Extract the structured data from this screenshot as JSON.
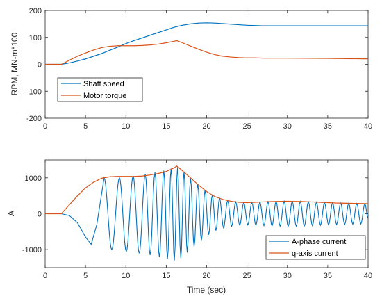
{
  "chart_data": [
    {
      "type": "line",
      "xlim": [
        0,
        40
      ],
      "ylim": [
        -200,
        200
      ],
      "xticks": [
        0,
        5,
        10,
        15,
        20,
        25,
        30,
        35,
        40
      ],
      "yticks": [
        -200,
        -100,
        0,
        100,
        200
      ],
      "xlabel": "",
      "ylabel": "RPM, MN-m*100",
      "grid": false,
      "legend_position": "lower-left",
      "series": [
        {
          "name": "Shaft speed",
          "color": "#0072BD",
          "x": [
            0,
            2,
            3,
            4,
            5,
            6,
            7,
            8,
            9,
            10,
            11,
            12,
            13,
            14,
            15,
            16,
            17,
            18,
            19,
            20,
            21,
            22,
            23,
            24,
            25,
            26,
            27,
            28,
            30,
            32,
            35,
            38,
            40
          ],
          "y": [
            0,
            0,
            5,
            12,
            20,
            30,
            40,
            52,
            64,
            77,
            88,
            98,
            108,
            118,
            128,
            138,
            145,
            150,
            153,
            154,
            153,
            151,
            149,
            147,
            145,
            144,
            143,
            143,
            143,
            143,
            143,
            143,
            143
          ]
        },
        {
          "name": "Motor torque",
          "color": "#D95319",
          "x": [
            0,
            2,
            3,
            4,
            5,
            6,
            7,
            8,
            9,
            10,
            11,
            12,
            13,
            14,
            15,
            16,
            16.3,
            17,
            18,
            19,
            20,
            21,
            22,
            23,
            24,
            25,
            26,
            27,
            30,
            35,
            40
          ],
          "y": [
            0,
            0,
            15,
            30,
            42,
            53,
            62,
            67,
            69,
            69,
            69,
            70,
            72,
            75,
            80,
            86,
            88,
            80,
            68,
            56,
            45,
            36,
            30,
            27,
            25,
            24,
            24,
            23,
            23,
            22,
            20
          ]
        }
      ]
    },
    {
      "type": "line",
      "xlim": [
        0,
        40
      ],
      "ylim": [
        -1500,
        1500
      ],
      "xticks": [
        0,
        5,
        10,
        15,
        20,
        25,
        30,
        35,
        40
      ],
      "yticks": [
        -1000,
        0,
        1000
      ],
      "xlabel": "Time (sec)",
      "ylabel": "A",
      "grid": false,
      "legend_position": "lower-right",
      "series": [
        {
          "name": "A-phase current",
          "color": "#0072BD",
          "signal": "sinusoid bounded by the q-axis current envelope",
          "peaks_t": [
            7.3,
            9.2,
            10.9,
            12.4,
            13.6,
            14.7,
            15.6,
            16.4,
            17.2,
            18.0,
            18.9,
            19.8,
            20.7,
            21.6,
            22.6,
            23.6,
            24.6,
            25.6,
            26.6,
            27.6,
            28.6,
            29.6,
            30.6,
            31.6,
            32.6,
            33.6,
            34.6,
            35.6,
            36.6,
            37.6,
            38.6,
            39.6
          ],
          "x": [
            0,
            2,
            3,
            4,
            5,
            5.7,
            6.4,
            7.3,
            8.25,
            9.2,
            10.05,
            10.9,
            11.65,
            12.4,
            13.0,
            13.6,
            14.15,
            14.7,
            15.15,
            15.6,
            16.0,
            16.4
          ],
          "y": [
            0,
            0,
            -50,
            -250,
            -650,
            -850,
            -300,
            1000,
            -1000,
            1000,
            -1050,
            1050,
            -1100,
            1100,
            -1150,
            1150,
            -1200,
            1200,
            -1250,
            1260,
            -1300,
            1300
          ]
        },
        {
          "name": "q-axis current",
          "color": "#D95319",
          "x": [
            0,
            2,
            3,
            4,
            5,
            6,
            7,
            8,
            9,
            10,
            11,
            12,
            13,
            14,
            15,
            16,
            16.3,
            17,
            18,
            19,
            20,
            21,
            22,
            23,
            24,
            25,
            26,
            27,
            28,
            29,
            30,
            31,
            32,
            33,
            34,
            35,
            36,
            37,
            38,
            39,
            40
          ],
          "y": [
            0,
            0,
            250,
            500,
            720,
            880,
            990,
            1030,
            1040,
            1040,
            1040,
            1050,
            1080,
            1120,
            1180,
            1280,
            1330,
            1200,
            1000,
            800,
            620,
            480,
            400,
            350,
            320,
            310,
            320,
            330,
            340,
            345,
            350,
            345,
            340,
            330,
            320,
            310,
            300,
            295,
            290,
            285,
            280
          ]
        }
      ]
    }
  ]
}
